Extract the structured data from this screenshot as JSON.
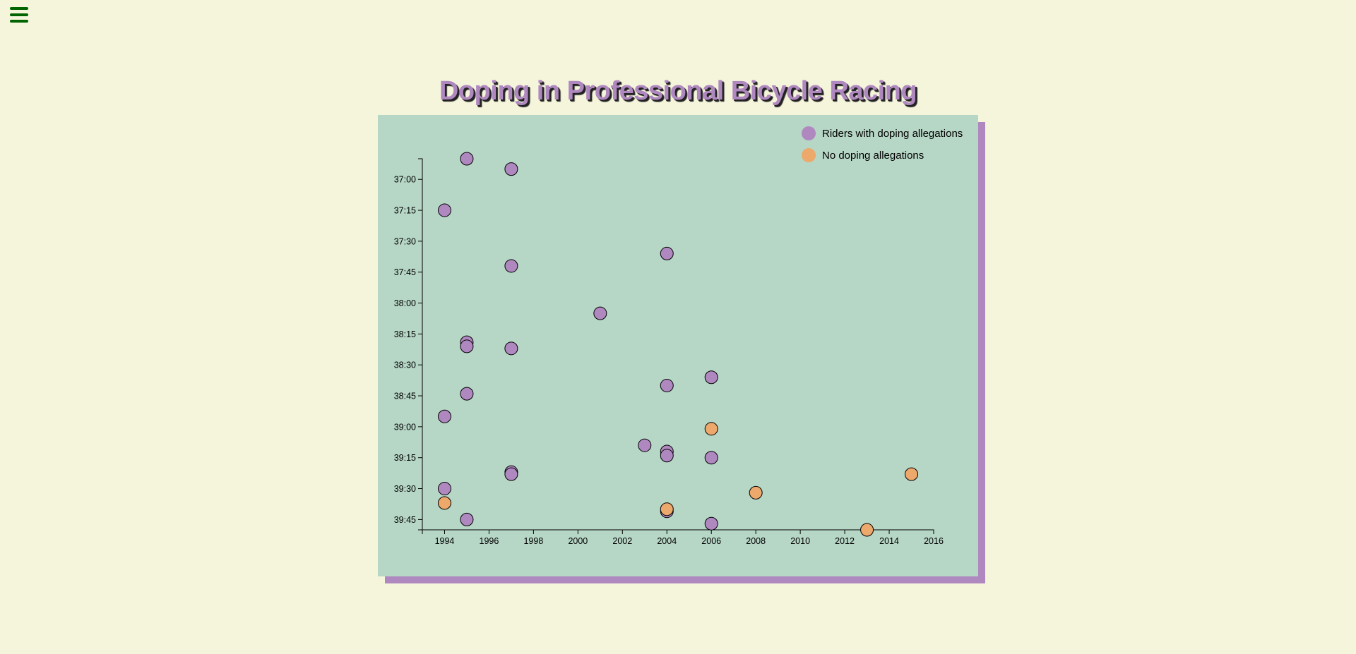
{
  "menu": {
    "icon": "hamburger-menu-icon"
  },
  "colors": {
    "background": "#f5f5dc",
    "plot_background": "#b6d6c6",
    "shadow": "#b088c0",
    "doping": "#b088c0",
    "no_doping": "#eda86c",
    "menu_icon": "#006400"
  },
  "chart_data": {
    "type": "scatter",
    "title": "Doping in Professional Bicycle Racing",
    "xlabel": "",
    "ylabel": "",
    "xlim": [
      1993,
      2016
    ],
    "ylim": [
      "36:50",
      "39:50"
    ],
    "x_ticks": [
      "1994",
      "1996",
      "1998",
      "2000",
      "2002",
      "2004",
      "2006",
      "2008",
      "2010",
      "2012",
      "2014",
      "2016"
    ],
    "y_ticks": [
      "37:00",
      "37:15",
      "37:30",
      "37:45",
      "38:00",
      "38:15",
      "38:30",
      "38:45",
      "39:00",
      "39:15",
      "39:30",
      "39:45"
    ],
    "legend": {
      "placement": "top-right",
      "entries": [
        {
          "label": "Riders with doping allegations",
          "color": "#b088c0"
        },
        {
          "label": "No doping allegations",
          "color": "#eda86c"
        }
      ]
    },
    "series": [
      {
        "name": "Riders with doping allegations",
        "points": [
          {
            "x": 1995,
            "y": "36:50"
          },
          {
            "x": 1997,
            "y": "36:55"
          },
          {
            "x": 1994,
            "y": "37:15"
          },
          {
            "x": 2004,
            "y": "37:36"
          },
          {
            "x": 1997,
            "y": "37:42"
          },
          {
            "x": 2001,
            "y": "38:05"
          },
          {
            "x": 1995,
            "y": "38:19"
          },
          {
            "x": 1995,
            "y": "38:21"
          },
          {
            "x": 1997,
            "y": "38:22"
          },
          {
            "x": 2006,
            "y": "38:36"
          },
          {
            "x": 2004,
            "y": "38:40"
          },
          {
            "x": 1995,
            "y": "38:44"
          },
          {
            "x": 1994,
            "y": "38:55"
          },
          {
            "x": 2003,
            "y": "39:09"
          },
          {
            "x": 2004,
            "y": "39:12"
          },
          {
            "x": 2004,
            "y": "39:14"
          },
          {
            "x": 2006,
            "y": "39:15"
          },
          {
            "x": 1997,
            "y": "39:22"
          },
          {
            "x": 1997,
            "y": "39:23"
          },
          {
            "x": 1994,
            "y": "39:30"
          },
          {
            "x": 2004,
            "y": "39:41"
          },
          {
            "x": 1995,
            "y": "39:45"
          },
          {
            "x": 2006,
            "y": "39:47"
          }
        ]
      },
      {
        "name": "No doping allegations",
        "points": [
          {
            "x": 2006,
            "y": "39:01"
          },
          {
            "x": 2015,
            "y": "39:23"
          },
          {
            "x": 2008,
            "y": "39:32"
          },
          {
            "x": 1994,
            "y": "39:37"
          },
          {
            "x": 2004,
            "y": "39:40"
          },
          {
            "x": 2013,
            "y": "39:50"
          }
        ]
      }
    ]
  }
}
